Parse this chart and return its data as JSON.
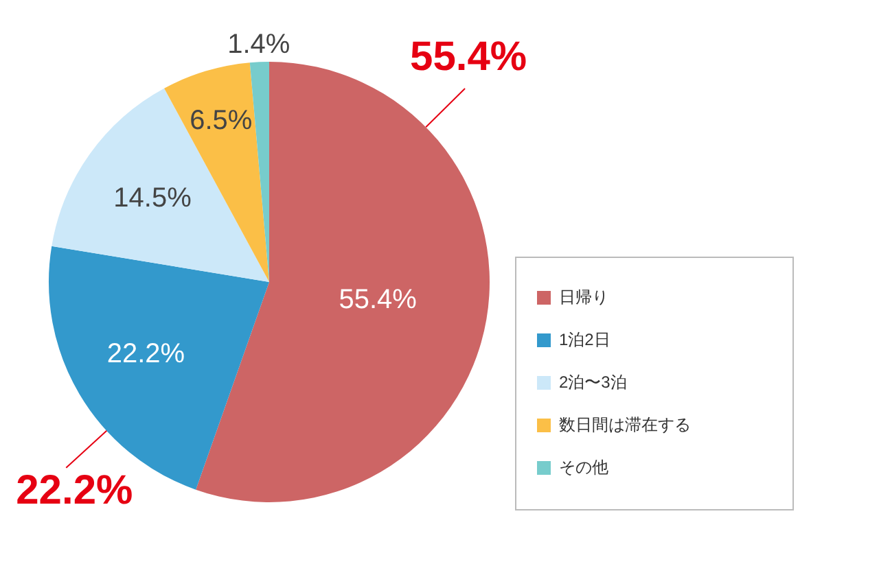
{
  "chart_data": {
    "type": "pie",
    "categories": [
      "日帰り",
      "1泊2日",
      "2泊〜3泊",
      "数日間は滞在する",
      "その他"
    ],
    "values": [
      55.4,
      22.2,
      14.5,
      6.5,
      1.4
    ],
    "colors": [
      "#cd6565",
      "#3399cc",
      "#cce8f9",
      "#fbbf47",
      "#77cccc"
    ],
    "value_labels": [
      "55.4%",
      "22.2%",
      "14.5%",
      "6.5%",
      "1.4%"
    ],
    "legend": "right",
    "annotations": [
      "55.4%",
      "22.2%"
    ]
  }
}
